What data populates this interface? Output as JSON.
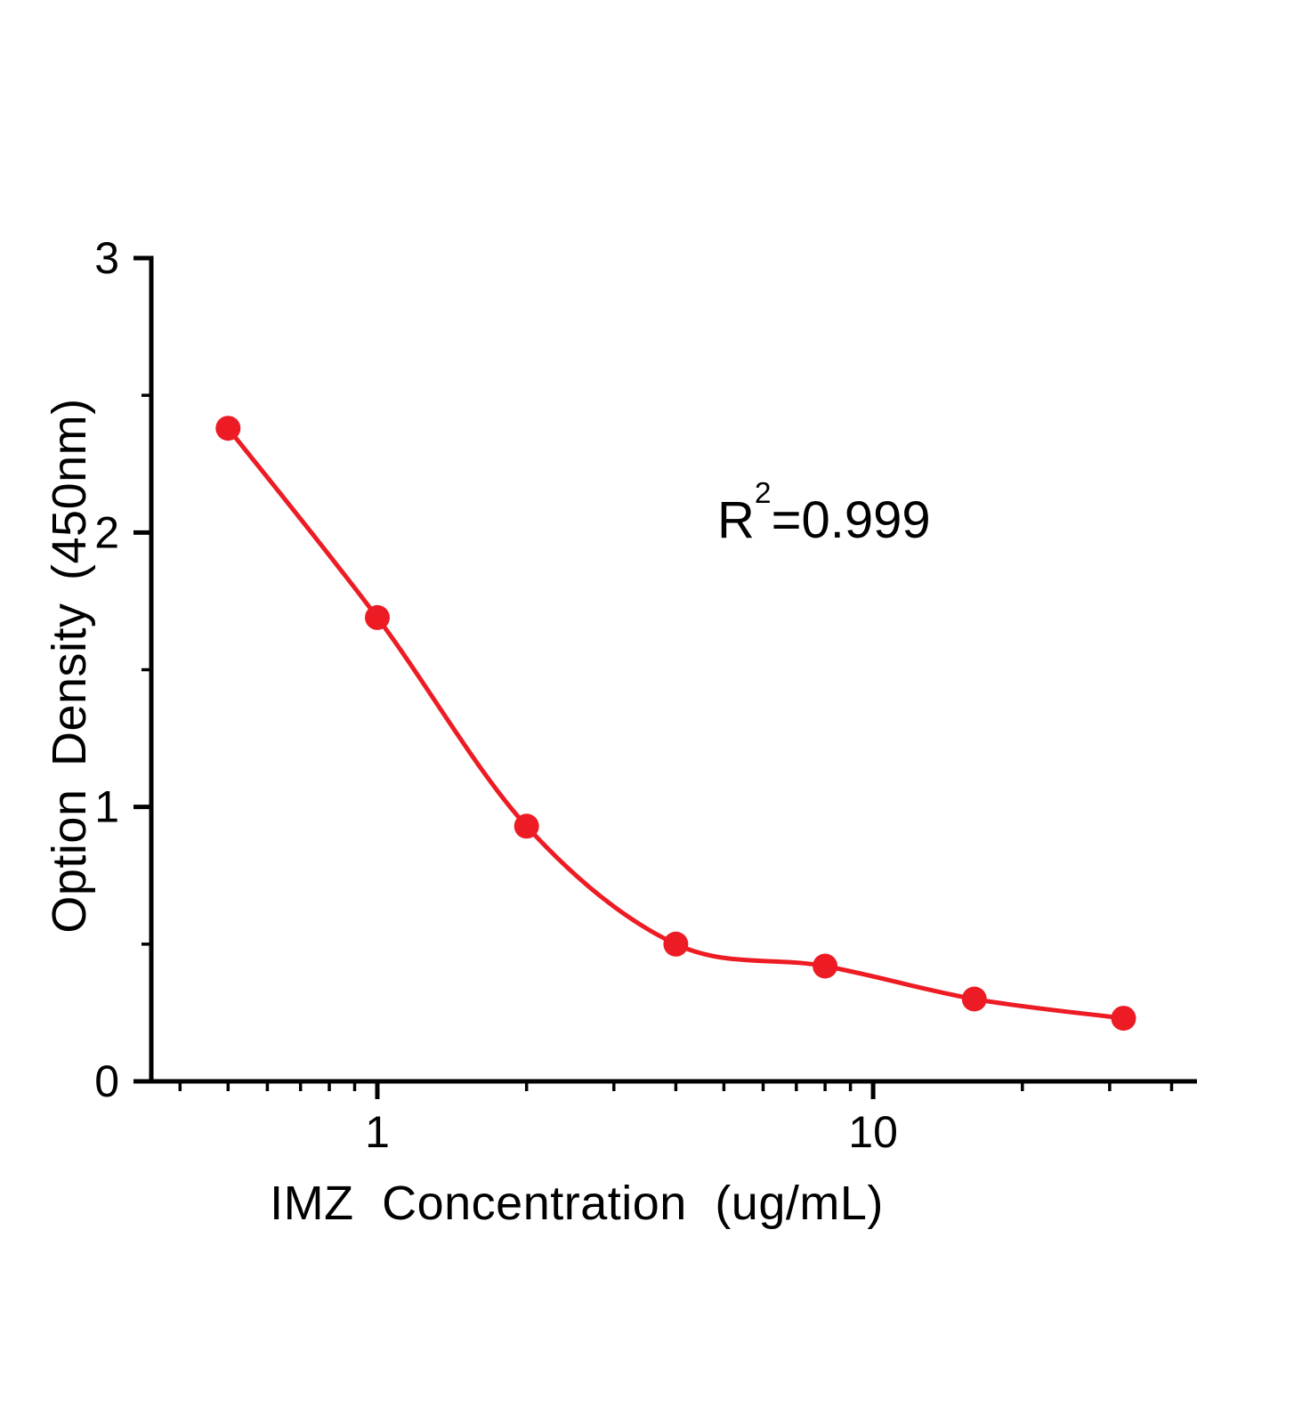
{
  "page": {
    "background": "#ffffff"
  },
  "chart_data": {
    "type": "scatter",
    "title": "",
    "xlabel": "IMZ Concentration (ug/mL)",
    "ylabel": "Option Density (450nm)",
    "x_scale": "log",
    "y_scale": "linear",
    "xlim": [
      0.35,
      45
    ],
    "ylim": [
      0,
      3
    ],
    "grid": false,
    "legend": "none",
    "axis_color": "#000000",
    "x_major_ticks": [
      1,
      10
    ],
    "x_major_tick_labels": [
      "1",
      "10"
    ],
    "x_minor_ticks": [
      0.4,
      0.5,
      0.6,
      0.7,
      0.8,
      0.9,
      2,
      3,
      4,
      5,
      6,
      7,
      8,
      9,
      20,
      30,
      40
    ],
    "y_major_ticks": [
      0,
      1,
      2,
      3
    ],
    "y_major_tick_labels": [
      "0",
      "1",
      "2",
      "3"
    ],
    "y_minor_ticks": [
      0.5,
      1.5,
      2.5
    ],
    "series": [
      {
        "color": "#ED1C24",
        "marker": "circle",
        "fit": "smooth-curve",
        "x": [
          0.5,
          1,
          2,
          4,
          8,
          16,
          32
        ],
        "y": [
          2.38,
          1.69,
          0.93,
          0.5,
          0.42,
          0.3,
          0.23
        ]
      }
    ],
    "annotation": {
      "text": "R²=0.999",
      "base": "R",
      "sup": "2",
      "rest": "=0.999"
    }
  }
}
